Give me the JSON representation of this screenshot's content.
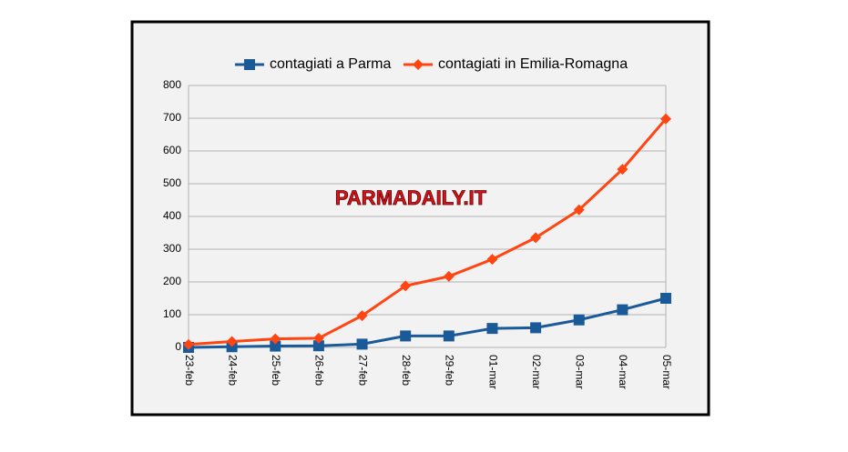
{
  "chart_data": {
    "type": "line",
    "categories": [
      "23-feb",
      "24-feb",
      "25-feb",
      "26-feb",
      "27-feb",
      "28-feb",
      "29-feb",
      "01-mar",
      "02-mar",
      "03-mar",
      "04-mar",
      "05-mar"
    ],
    "series": [
      {
        "name": "contagiati a Parma",
        "color": "#1b5a98",
        "marker": "square",
        "values": [
          0,
          2,
          4,
          5,
          10,
          35,
          35,
          58,
          60,
          84,
          115,
          150
        ]
      },
      {
        "name": "contagiati in Emilia-Romagna",
        "color": "#ff4512",
        "marker": "diamond",
        "values": [
          9,
          18,
          26,
          28,
          97,
          188,
          217,
          269,
          335,
          420,
          544,
          698
        ]
      }
    ],
    "ylim": [
      0,
      800
    ],
    "yticks": [
      0,
      100,
      200,
      300,
      400,
      500,
      600,
      700,
      800
    ],
    "grid": true,
    "annotations": [
      "PARMADAILY.IT"
    ]
  }
}
